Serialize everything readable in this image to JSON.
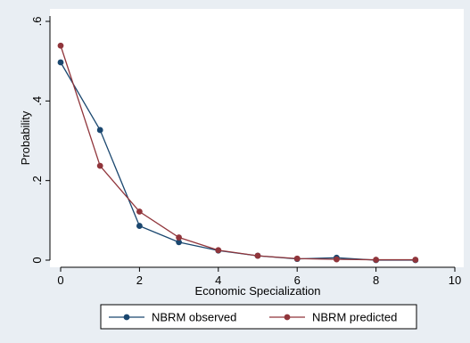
{
  "chart_data": {
    "type": "line",
    "xlabel": "Economic Specialization",
    "ylabel": "Probability",
    "xlim": [
      0,
      10
    ],
    "ylim": [
      0,
      0.6
    ],
    "x_ticks": [
      0,
      2,
      4,
      6,
      8,
      10
    ],
    "x_tick_labels": [
      "0",
      "2",
      "4",
      "6",
      "8",
      "10"
    ],
    "y_ticks": [
      0,
      0.2,
      0.4,
      0.6
    ],
    "y_tick_labels": [
      "0",
      ".2",
      ".4",
      ".6"
    ],
    "grid": false,
    "legend_position": "bottom",
    "x": [
      0,
      1,
      2,
      3,
      4,
      5,
      6,
      7,
      8,
      9
    ],
    "series": [
      {
        "name": "NBRM observed",
        "color": "#1a476f",
        "values": [
          0.497,
          0.327,
          0.086,
          0.045,
          0.024,
          0.011,
          0.003,
          0.006,
          0.0,
          0.0
        ]
      },
      {
        "name": "NBRM predicted",
        "color": "#90353b",
        "values": [
          0.539,
          0.237,
          0.122,
          0.057,
          0.025,
          0.011,
          0.004,
          0.002,
          0.001,
          0.001
        ]
      }
    ]
  },
  "colors": {
    "background": "#e9eef3",
    "plot_area": "#ffffff"
  }
}
